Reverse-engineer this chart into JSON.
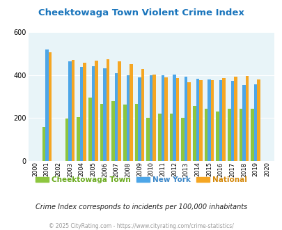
{
  "title": "Cheektowaga Town Violent Crime Index",
  "years": [
    2000,
    2001,
    2002,
    2003,
    2004,
    2005,
    2006,
    2007,
    2008,
    2009,
    2010,
    2011,
    2012,
    2013,
    2014,
    2015,
    2016,
    2017,
    2018,
    2019,
    2020
  ],
  "cheektowaga": [
    0,
    160,
    0,
    197,
    205,
    297,
    265,
    278,
    263,
    267,
    201,
    220,
    220,
    201,
    255,
    243,
    232,
    243,
    243,
    242,
    0
  ],
  "new_york": [
    0,
    520,
    0,
    463,
    438,
    443,
    432,
    410,
    398,
    388,
    398,
    398,
    404,
    393,
    383,
    380,
    378,
    372,
    353,
    357,
    0
  ],
  "national": [
    0,
    506,
    0,
    470,
    458,
    469,
    473,
    463,
    452,
    428,
    403,
    390,
    387,
    368,
    376,
    377,
    387,
    394,
    397,
    379,
    0
  ],
  "color_cheektowaga": "#8dc63f",
  "color_new_york": "#4da6e8",
  "color_national": "#f5a623",
  "bg_color": "#e8f4f8",
  "title_color": "#1a75bc",
  "ylabel_max": 600,
  "yticks": [
    0,
    200,
    400,
    600
  ],
  "subtitle": "Crime Index corresponds to incidents per 100,000 inhabitants",
  "footer": "© 2025 CityRating.com - https://www.cityrating.com/crime-statistics/",
  "legend_labels": [
    "Cheektowaga Town",
    "New York",
    "National"
  ],
  "legend_text_colors": [
    "#6aaa1e",
    "#3a86c8",
    "#d4880a"
  ]
}
